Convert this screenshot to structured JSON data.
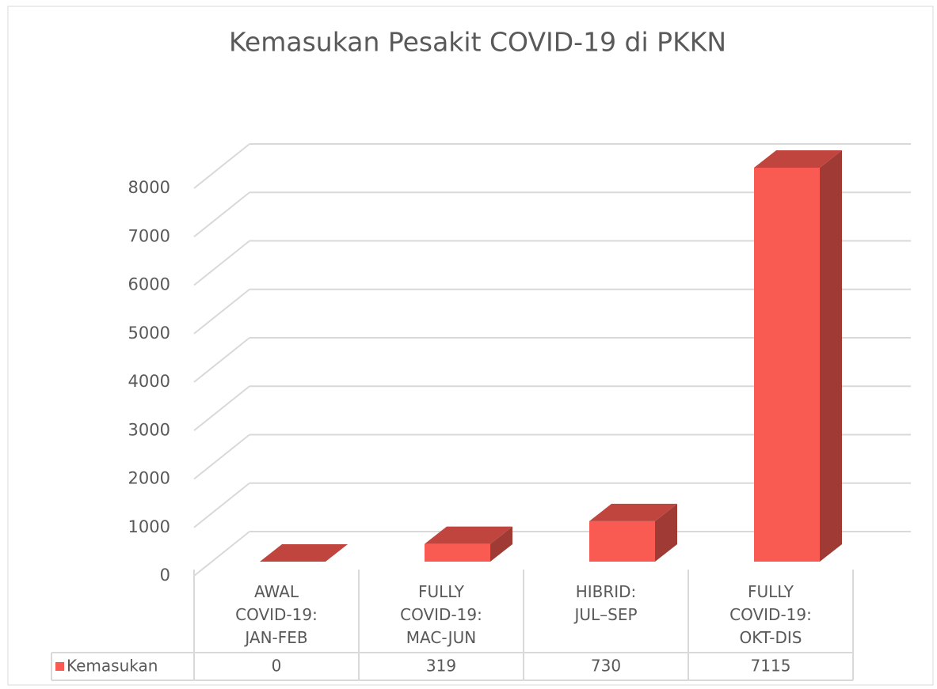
{
  "chart_data": {
    "type": "bar3d",
    "title": "Kemasukan Pesakit COVID-19 di PKKN",
    "categories": [
      "AWAL COVID-19: JAN-FEB",
      "FULLY COVID-19: MAC-JUN",
      "HIBRID: JUL–SEP",
      "FULLY COVID-19: OKT-DIS"
    ],
    "series": [
      {
        "name": "Kemasukan",
        "color": "#f95a52",
        "values": [
          0,
          319,
          730,
          7115
        ]
      }
    ],
    "ylim": [
      0,
      8000
    ],
    "yticks": [
      0,
      1000,
      2000,
      3000,
      4000,
      5000,
      6000,
      7000,
      8000
    ],
    "grid": true,
    "data_table": true
  }
}
